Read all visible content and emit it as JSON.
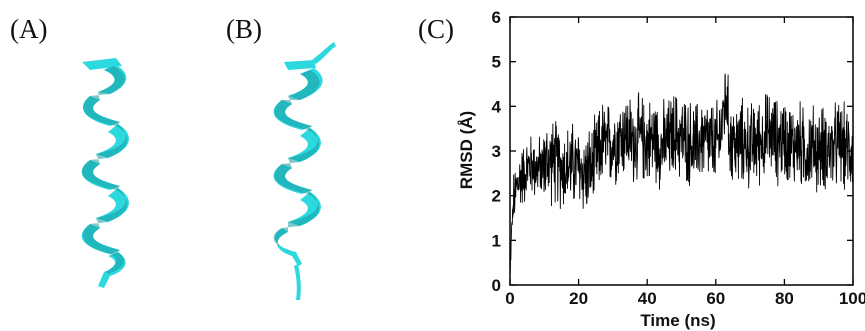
{
  "panels": {
    "a_label": "(A)",
    "b_label": "(B)",
    "c_label": "(C)"
  },
  "helix_color": "#2bd9df",
  "chart_data": {
    "type": "line",
    "xlabel": "Time (ns)",
    "ylabel": "RMSD (Å)",
    "xlim": [
      0,
      100
    ],
    "ylim": [
      0,
      6
    ],
    "xticks": [
      0,
      20,
      40,
      60,
      80,
      100
    ],
    "yticks": [
      0,
      1,
      2,
      3,
      4,
      5,
      6
    ],
    "grid": false,
    "series": [
      {
        "color": "#000000",
        "x": [
          0,
          0.5,
          1,
          2,
          3,
          4,
          5,
          6,
          8,
          10,
          12,
          14,
          16,
          18,
          20,
          22,
          24,
          26,
          27,
          28,
          30,
          32,
          34,
          36,
          38,
          40,
          42,
          44,
          46,
          48,
          50,
          52,
          54,
          56,
          58,
          60,
          61,
          62,
          63,
          64,
          66,
          68,
          70,
          72,
          74,
          76,
          78,
          80,
          82,
          84,
          86,
          88,
          90,
          92,
          94,
          96,
          98,
          100
        ],
        "y": [
          0.1,
          1.3,
          1.8,
          2.2,
          2.4,
          2.5,
          2.6,
          2.7,
          2.6,
          2.7,
          2.8,
          2.7,
          2.6,
          2.7,
          2.6,
          2.5,
          2.6,
          3.0,
          3.2,
          3.1,
          3.2,
          3.3,
          3.4,
          3.2,
          3.3,
          3.2,
          3.3,
          3.1,
          3.2,
          3.4,
          3.3,
          3.2,
          3.1,
          3.3,
          3.2,
          3.1,
          3.3,
          3.7,
          4.3,
          3.3,
          3.1,
          3.2,
          3.1,
          3.2,
          3.3,
          3.4,
          3.2,
          3.3,
          3.1,
          3.2,
          3.0,
          3.1,
          3.0,
          3.1,
          3.0,
          3.2,
          3.0,
          3.1
        ]
      }
    ]
  }
}
